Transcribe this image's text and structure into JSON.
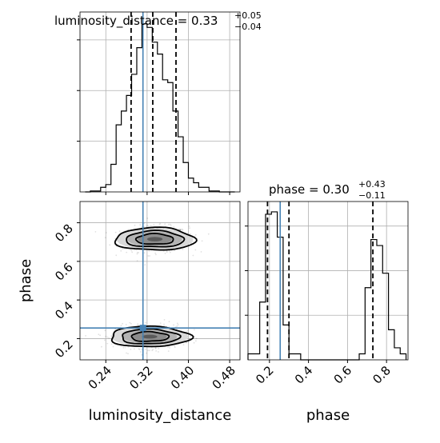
{
  "chart_data": [
    {
      "type": "histogram",
      "panel": "top-left",
      "parameter": "luminosity_distance",
      "title": {
        "text": "luminosity_distance = 0.33",
        "sup": "+0.05",
        "sub": "−0.04"
      },
      "xlim": [
        0.19,
        0.5
      ],
      "bin_edges": [
        0.2,
        0.21,
        0.22,
        0.23,
        0.24,
        0.25,
        0.26,
        0.27,
        0.28,
        0.29,
        0.3,
        0.31,
        0.32,
        0.33,
        0.34,
        0.35,
        0.36,
        0.37,
        0.38,
        0.39,
        0.4,
        0.41,
        0.42,
        0.43,
        0.44,
        0.45,
        0.46,
        0.47,
        0.48,
        0.49
      ],
      "counts": [
        0,
        1,
        1,
        5,
        8,
        30,
        73,
        88,
        105,
        128,
        157,
        183,
        179,
        163,
        150,
        122,
        119,
        88,
        60,
        32,
        15,
        10,
        5,
        5,
        1,
        1,
        0,
        0,
        0
      ],
      "quantiles": [
        0.289,
        0.331,
        0.376
      ],
      "truth": 0.312,
      "truth_color": "#4682b4",
      "ytick_count": 3
    },
    {
      "type": "scatter",
      "panel": "bottom-left",
      "xlabel": "luminosity_distance",
      "ylabel": "phase",
      "xlim": [
        0.19,
        0.5
      ],
      "ylim": [
        0.09,
        0.91
      ],
      "xticks": [
        "0.24",
        "0.32",
        "0.40",
        "0.48"
      ],
      "xtick_values": [
        0.24,
        0.32,
        0.4,
        0.48
      ],
      "yticks": [
        "0.2",
        "0.4",
        "0.6",
        "0.8"
      ],
      "ytick_values": [
        0.2,
        0.4,
        0.6,
        0.8
      ],
      "clusters": [
        {
          "center": [
            0.335,
            0.715
          ],
          "spread": [
            0.033,
            0.033
          ]
        },
        {
          "center": [
            0.325,
            0.21
          ],
          "spread": [
            0.033,
            0.03
          ]
        }
      ],
      "truth": [
        0.312,
        0.255
      ],
      "truth_color": "#4682b4"
    },
    {
      "type": "histogram",
      "panel": "bottom-right",
      "parameter": "phase",
      "title": {
        "text": "phase = 0.30",
        "sup": "+0.43",
        "sub": "−0.11"
      },
      "xlabel": "phase",
      "xlim": [
        0.09,
        0.91
      ],
      "xticks": [
        "0.2",
        "0.4",
        "0.6",
        "0.8"
      ],
      "xtick_values": [
        0.2,
        0.4,
        0.6,
        0.8
      ],
      "bin_edges": [
        0.09,
        0.12,
        0.15,
        0.18,
        0.21,
        0.24,
        0.27,
        0.3,
        0.33,
        0.36,
        0.39,
        0.42,
        0.45,
        0.48,
        0.51,
        0.54,
        0.57,
        0.6,
        0.63,
        0.66,
        0.69,
        0.72,
        0.75,
        0.78,
        0.81,
        0.84,
        0.87,
        0.9
      ],
      "counts": [
        5,
        5,
        48,
        121,
        123,
        102,
        29,
        5,
        5,
        0,
        0,
        0,
        0,
        0,
        0,
        0,
        0,
        0,
        0,
        5,
        60,
        100,
        95,
        72,
        25,
        10,
        5
      ],
      "quantiles": [
        0.19,
        0.3,
        0.73
      ],
      "truth": 0.255,
      "truth_color": "#4682b4",
      "ytick_count": 3
    }
  ]
}
